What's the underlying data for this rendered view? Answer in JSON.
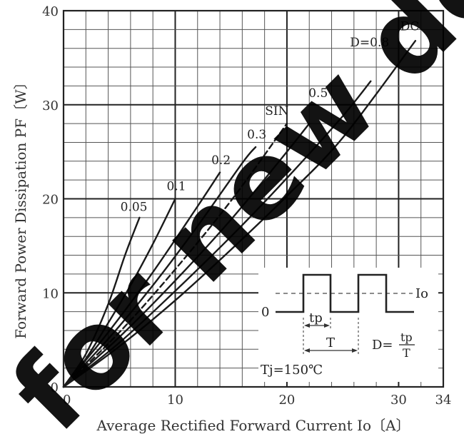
{
  "chart_data": {
    "type": "line",
    "xlabel": "Average Rectified Forward Current  Io〔A〕",
    "ylabel": "Forward Power Dissipation  PF〔W〕",
    "xlim": [
      0,
      34
    ],
    "ylim": [
      0,
      40
    ],
    "x_ticks": [
      {
        "value": 0,
        "label": "0"
      },
      {
        "value": 10,
        "label": "10"
      },
      {
        "value": 20,
        "label": "20"
      },
      {
        "value": 30,
        "label": "30"
      },
      {
        "value": 34,
        "label": "34"
      }
    ],
    "y_ticks": [
      {
        "value": 0,
        "label": "0"
      },
      {
        "value": 10,
        "label": "10"
      },
      {
        "value": 20,
        "label": "20"
      },
      {
        "value": 30,
        "label": "30"
      },
      {
        "value": 40,
        "label": "40"
      }
    ],
    "grid": true,
    "series": [
      {
        "name": "0.05",
        "dash": false,
        "label_at": [
          6.3,
          18.7
        ],
        "points": [
          [
            0,
            0
          ],
          [
            2,
            3.5
          ],
          [
            4,
            8.8
          ],
          [
            5.5,
            14
          ],
          [
            6.8,
            18
          ]
        ]
      },
      {
        "name": "0.1",
        "dash": false,
        "label_at": [
          10.1,
          20.9
        ],
        "points": [
          [
            0,
            0
          ],
          [
            2,
            3.0
          ],
          [
            4,
            6.8
          ],
          [
            6,
            10.8
          ],
          [
            8,
            15.2
          ],
          [
            10,
            20
          ]
        ]
      },
      {
        "name": "0.2",
        "dash": false,
        "label_at": [
          14.1,
          23.7
        ],
        "points": [
          [
            0,
            0
          ],
          [
            4,
            5.8
          ],
          [
            8,
            12.2
          ],
          [
            12,
            19.2
          ],
          [
            14,
            22.8
          ]
        ]
      },
      {
        "name": "0.3",
        "dash": false,
        "label_at": [
          17.3,
          26.4
        ],
        "points": [
          [
            0,
            0
          ],
          [
            4,
            5.1
          ],
          [
            8,
            10.8
          ],
          [
            12,
            17.1
          ],
          [
            16,
            23.8
          ],
          [
            17.2,
            25.5
          ]
        ]
      },
      {
        "name": "SIN",
        "dash": true,
        "label_at": [
          19.1,
          28.9
        ],
        "points": [
          [
            0,
            0
          ],
          [
            5,
            5.8
          ],
          [
            10,
            12.5
          ],
          [
            15,
            19.8
          ],
          [
            20,
            28
          ]
        ]
      },
      {
        "name": "0.5",
        "dash": false,
        "label_at": [
          22.8,
          30.8
        ],
        "points": [
          [
            0,
            0
          ],
          [
            5,
            5.3
          ],
          [
            10,
            11.3
          ],
          [
            15,
            17.8
          ],
          [
            20,
            25
          ],
          [
            22,
            28
          ]
        ]
      },
      {
        "name": "D=0.8",
        "dash": false,
        "label_at": [
          27.4,
          36.2
        ],
        "points": [
          [
            0,
            0
          ],
          [
            5,
            4.7
          ],
          [
            10,
            10.2
          ],
          [
            15,
            16
          ],
          [
            20,
            22.2
          ],
          [
            25,
            28.8
          ],
          [
            27.5,
            32.5
          ]
        ]
      },
      {
        "name": "DC",
        "dash": false,
        "label_at": [
          31.0,
          37.9
        ],
        "points": [
          [
            0,
            0
          ],
          [
            5,
            4.3
          ],
          [
            10,
            9.2
          ],
          [
            15,
            14.6
          ],
          [
            20,
            20.3
          ],
          [
            25,
            26.5
          ],
          [
            31.5,
            36.8
          ]
        ]
      }
    ],
    "inset": {
      "io_label": "Io",
      "zero_label": "0",
      "tp_label": "tp",
      "t_label": "T",
      "d_label": "D=",
      "d_num": "tp",
      "d_den": "T",
      "tj_label": "Tj=150℃"
    }
  },
  "watermark": {
    "text": "for new de",
    "color": "#000000"
  }
}
